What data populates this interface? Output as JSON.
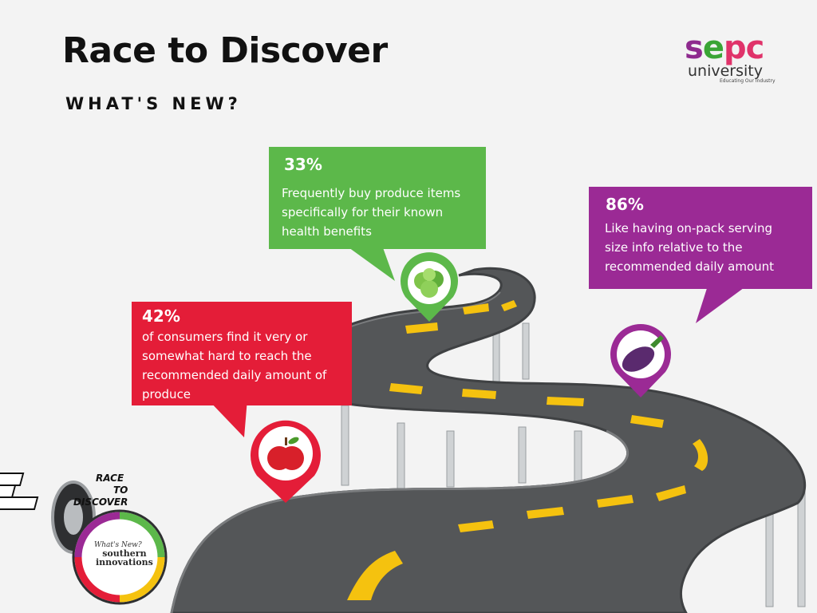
{
  "header": {
    "title": "Race to Discover",
    "subtitle": "WHAT'S NEW?"
  },
  "logo": {
    "brand_parts": [
      "s",
      "e",
      "p",
      "c"
    ],
    "university": "university",
    "tagline": "Educating Our Industry"
  },
  "callouts": {
    "green": {
      "percent": "33%",
      "text": "Frequently buy produce items specifically for their known health benefits",
      "color": "#5cb84a",
      "icon": "lettuce-icon"
    },
    "purple": {
      "percent": "86%",
      "lines": [
        "Like having on-pack serving",
        "size info relative to the",
        "recommended daily amount"
      ],
      "color": "#9b2a95",
      "icon": "eggplant-icon"
    },
    "red": {
      "percent": "42%",
      "text": "of consumers find it very or somewhat hard to reach the recommended daily amount of produce",
      "color": "#e41d38",
      "icon": "apple-icon"
    }
  },
  "badge": {
    "race": "RACE",
    "to": "TO",
    "discover": "DISCOVER",
    "whats_new": "What's New?",
    "southern": "southern",
    "innovations": "innovations"
  },
  "colors": {
    "road": "#525456",
    "road_edge": "#6e7072",
    "lane": "#f5c20f",
    "background": "#f3f3f3"
  }
}
